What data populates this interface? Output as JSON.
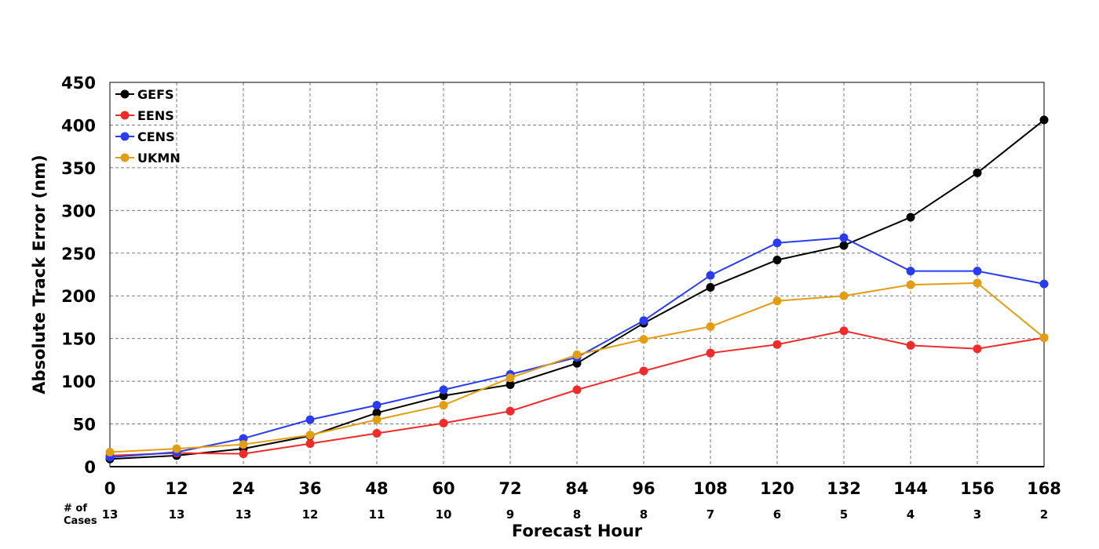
{
  "chart_data": {
    "type": "line",
    "x": [
      0,
      12,
      24,
      36,
      48,
      60,
      72,
      84,
      96,
      108,
      120,
      132,
      144,
      156,
      168
    ],
    "xticks": [
      "0",
      "12",
      "24",
      "36",
      "48",
      "60",
      "72",
      "84",
      "96",
      "108",
      "120",
      "132",
      "144",
      "156",
      "168"
    ],
    "yticks": [
      "0",
      "50",
      "100",
      "150",
      "200",
      "250",
      "300",
      "350",
      "400",
      "450"
    ],
    "xlim": [
      0,
      168
    ],
    "ylim": [
      0,
      450
    ],
    "xlabel": "Forecast Hour",
    "ylabel": "Absolute Track Error (nm)",
    "grid": true,
    "legend_position": "top-left",
    "cases_label": "# of Cases",
    "cases_label_lines": [
      "# of",
      "Cases"
    ],
    "cases": [
      "13",
      "13",
      "13",
      "12",
      "11",
      "10",
      "9",
      "8",
      "8",
      "7",
      "6",
      "5",
      "4",
      "3",
      "2"
    ],
    "series": [
      {
        "name": "GEFS",
        "color": "#000000",
        "values": [
          9,
          13,
          21,
          36,
          63,
          83,
          96,
          121,
          168,
          210,
          242,
          259,
          292,
          344,
          406
        ]
      },
      {
        "name": "EENS",
        "color": "#f22a2a",
        "values": [
          13,
          16,
          15,
          27,
          39,
          51,
          65,
          90,
          112,
          133,
          143,
          159,
          142,
          138,
          151
        ]
      },
      {
        "name": "CENS",
        "color": "#2a3cf2",
        "values": [
          11,
          17,
          33,
          55,
          72,
          90,
          108,
          128,
          171,
          224,
          262,
          268,
          229,
          229,
          214
        ]
      },
      {
        "name": "UKMN",
        "color": "#e39d12",
        "values": [
          17,
          21,
          26,
          37,
          55,
          72,
          104,
          131,
          149,
          164,
          194,
          200,
          213,
          215,
          151
        ]
      }
    ]
  }
}
